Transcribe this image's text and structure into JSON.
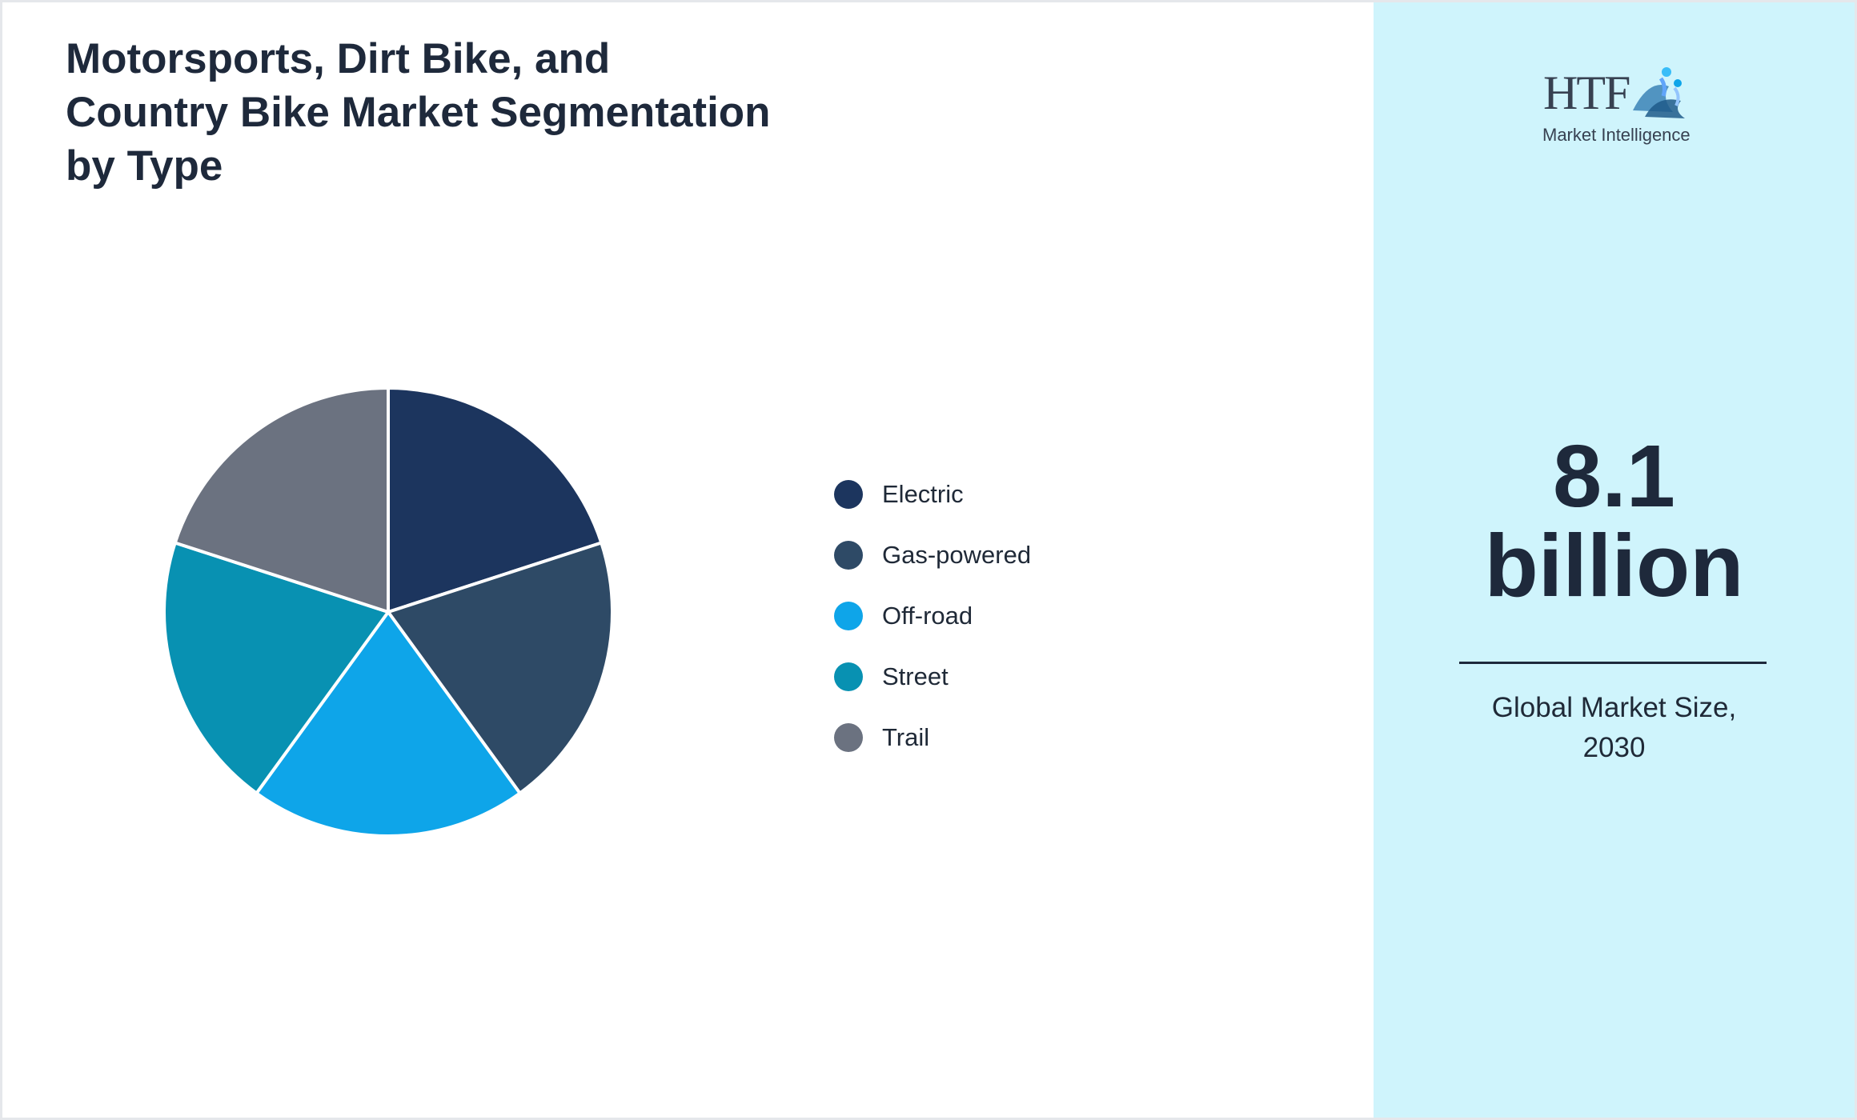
{
  "title": "Motorsports, Dirt Bike, and\nCountry Bike Market Segmentation\nby Type",
  "logo": {
    "brand": "HTF",
    "tagline": "Market Intelligence"
  },
  "metric": {
    "value": "8.1\nbillion",
    "caption": "Global Market Size,\n2030"
  },
  "colors": {
    "panel_background": "#cff4fc",
    "text_dark": "#1e293b",
    "slice_border": "#ffffff"
  },
  "chart_data": {
    "type": "pie",
    "title": "Motorsports, Dirt Bike, and Country Bike Market Segmentation by Type",
    "legend_position": "right",
    "start_angle_deg": 0,
    "direction": "clockwise",
    "slices": [
      {
        "label": "Electric",
        "value": 20,
        "color": "#1c355e"
      },
      {
        "label": "Gas-powered",
        "value": 20,
        "color": "#2e4a66"
      },
      {
        "label": "Off-road",
        "value": 20,
        "color": "#0ea5e9"
      },
      {
        "label": "Street",
        "value": 20,
        "color": "#0891b2"
      },
      {
        "label": "Trail",
        "value": 20,
        "color": "#6b7280"
      }
    ]
  }
}
